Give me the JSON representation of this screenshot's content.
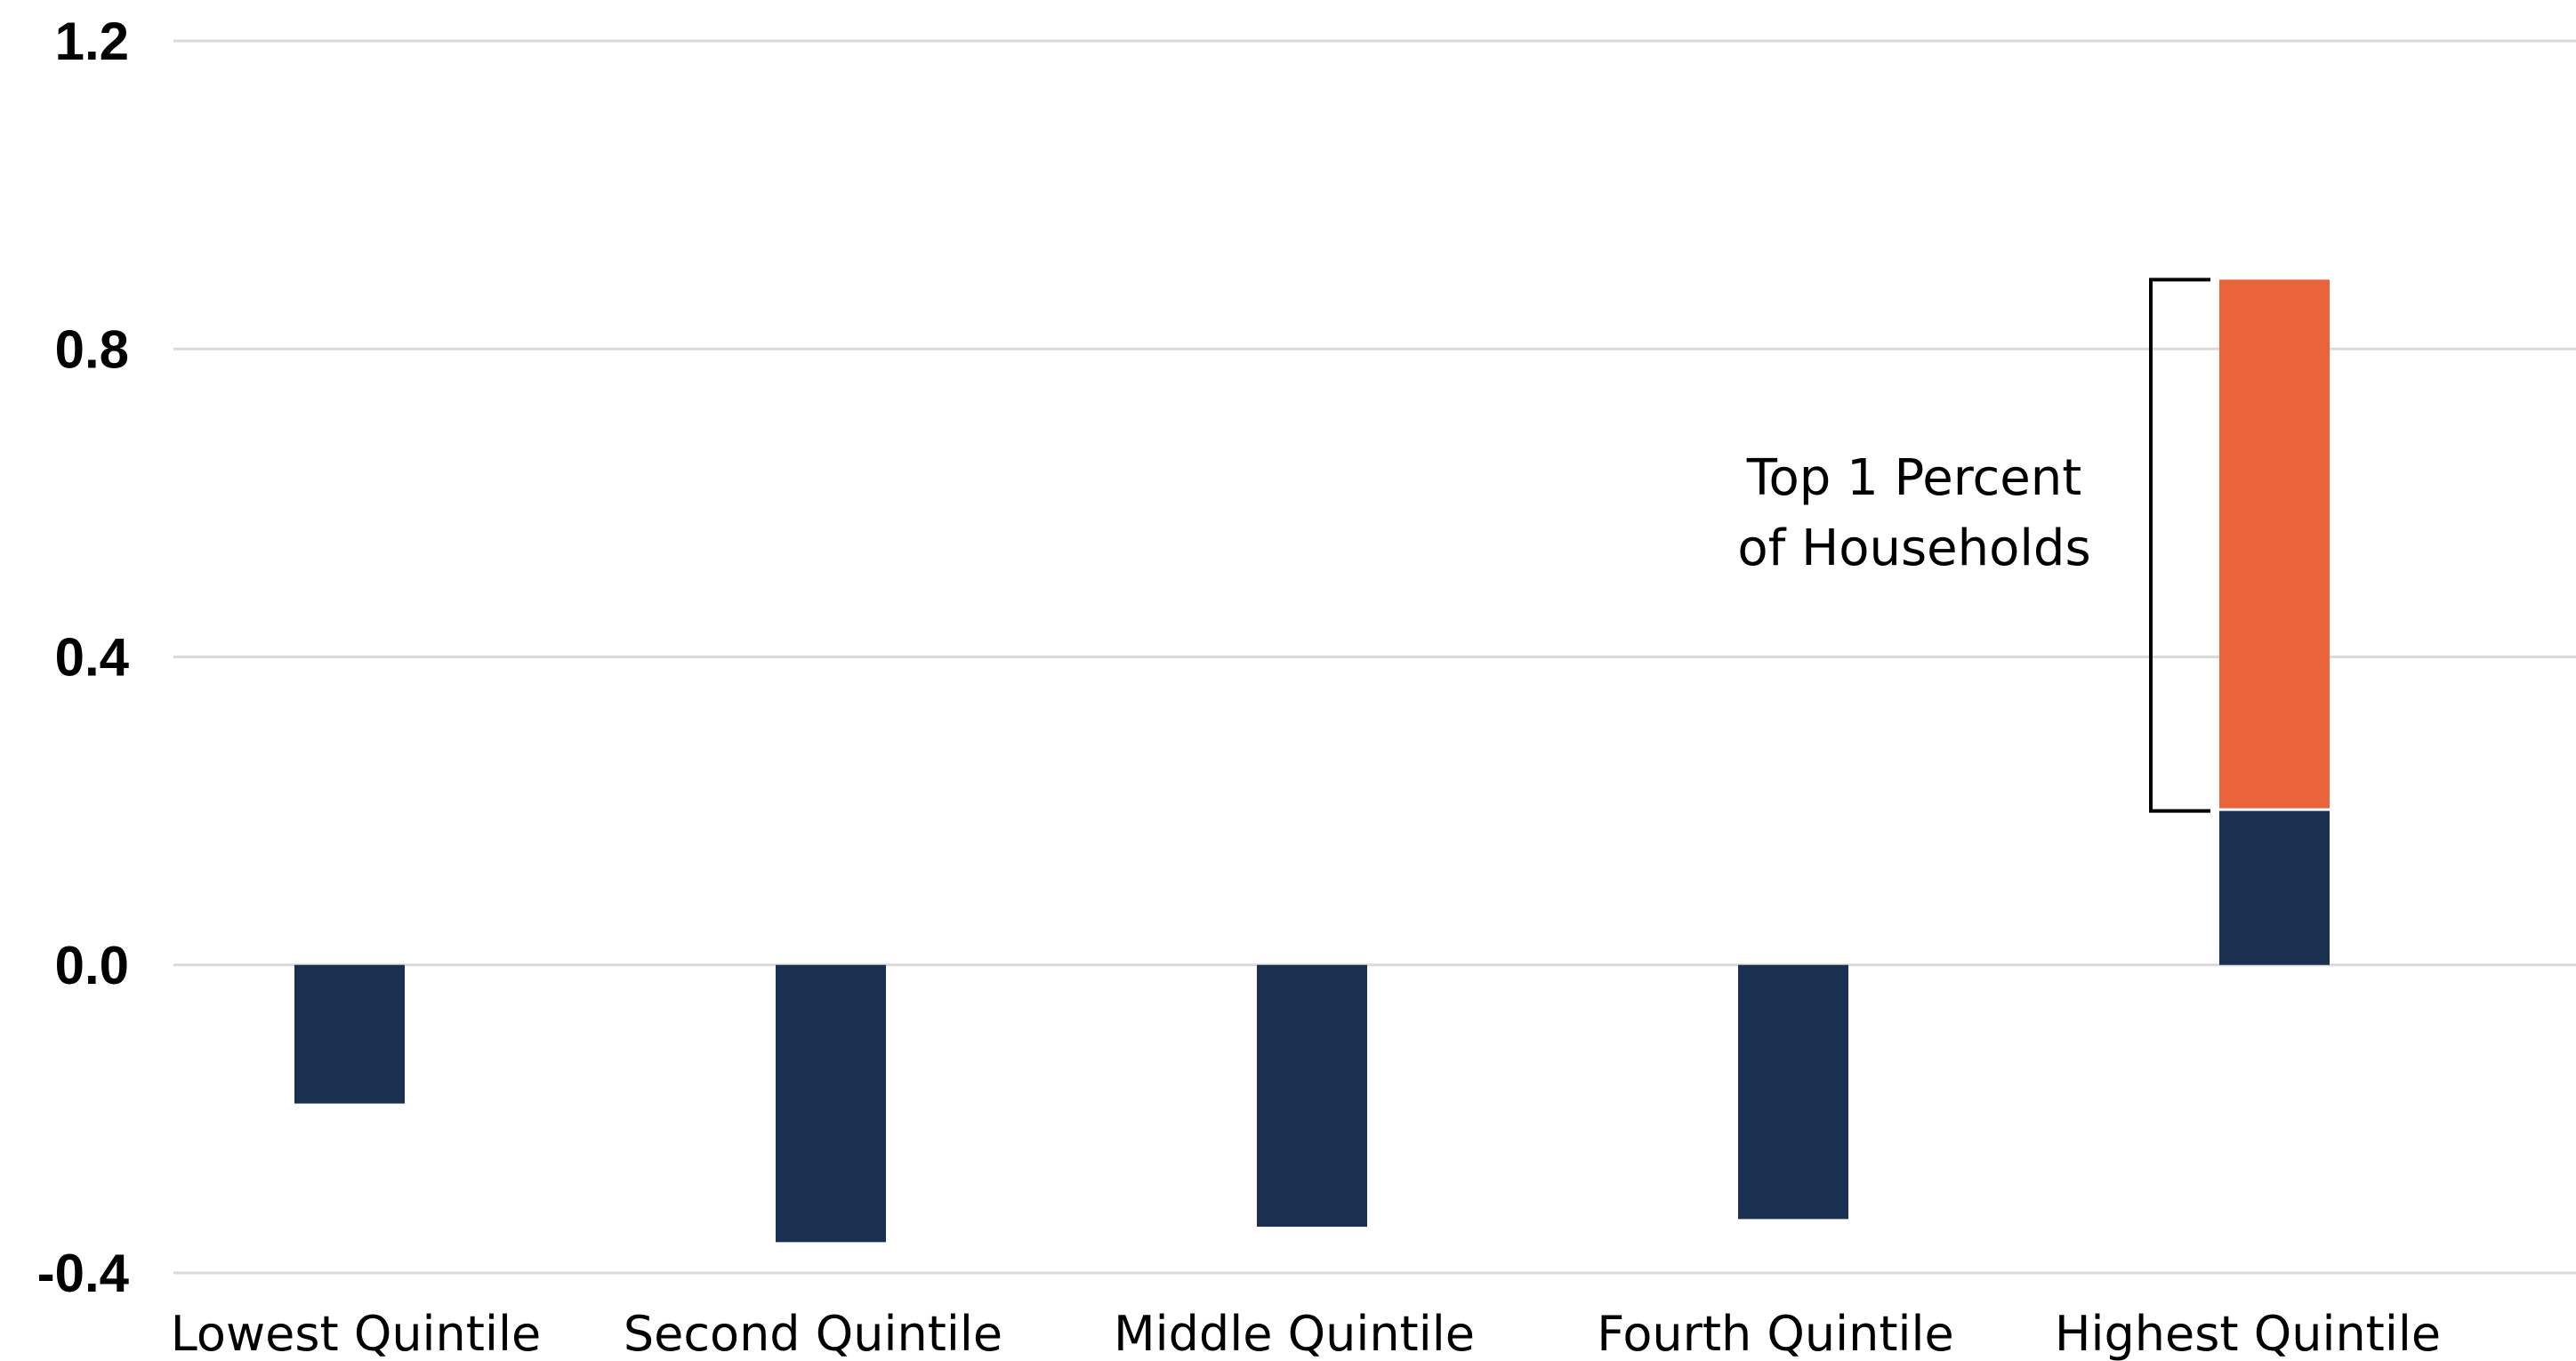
{
  "chart_data": {
    "type": "bar",
    "stacked": true,
    "categories": [
      "Lowest Quintile",
      "Second Quintile",
      "Middle Quintile",
      "Fourth Quintile",
      "Highest Quintile"
    ],
    "series": [
      {
        "color": "#1a3050",
        "values": [
          -0.18,
          -0.36,
          -0.34,
          -0.33,
          0.2
        ]
      },
      {
        "color": "#e9643a",
        "values": [
          0,
          0,
          0,
          0,
          0.69
        ]
      }
    ],
    "yticks": [
      "1.2",
      "0.8",
      "0.4",
      "0.0",
      "-0.4"
    ],
    "ylim": [
      -0.4,
      1.2
    ],
    "grid": true,
    "legend": "none",
    "annotation": {
      "lines": [
        "Top 1 Percent",
        "of Households"
      ],
      "target": "Highest Quintile",
      "from": 0.2,
      "to": 0.89
    }
  }
}
